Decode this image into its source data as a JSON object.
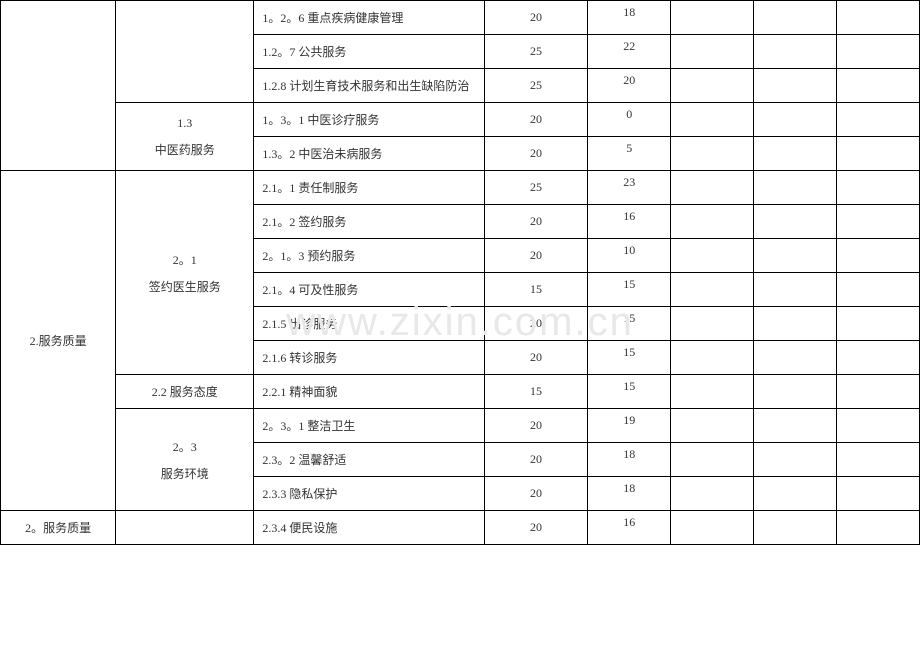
{
  "watermark": "www.zixin.com.cn",
  "table": {
    "border_color": "#000000",
    "background_color": "#ffffff",
    "font_size": 12,
    "text_color": "#333333",
    "rows": [
      {
        "col1": "",
        "col2": "",
        "col3": "1。2。6 重点疾病健康管理",
        "col4": "20",
        "col5": "18",
        "col1_rowspan": 5,
        "col2_rowspan": 3
      },
      {
        "col3": "1.2。7 公共服务",
        "col4": "25",
        "col5": "22"
      },
      {
        "col3": "1.2.8 计划生育技术服务和出生缺陷防治",
        "col4": "25",
        "col5": "20"
      },
      {
        "col2": "1.3",
        "col3": "1。3。1 中医诊疗服务",
        "col4": "20",
        "col5": "0",
        "col2_sub": "中医药服务",
        "col2_rowspan": 2
      },
      {
        "col3": "1.3。2 中医治未病服务",
        "col4": "20",
        "col5": "5"
      },
      {
        "col1": "2.服务质量",
        "col2": "2。1",
        "col2_sub": "签约医生服务",
        "col3": "2.1。1 责任制服务",
        "col4": "25",
        "col5": "23",
        "col1_rowspan": 10,
        "col2_rowspan": 6
      },
      {
        "col3": "2.1。2 签约服务",
        "col4": "20",
        "col5": "16"
      },
      {
        "col3": "2。1。3 预约服务",
        "col4": "20",
        "col5": "10"
      },
      {
        "col3": "2.1。4 可及性服务",
        "col4": "15",
        "col5": "15"
      },
      {
        "col3": "2.1.5 出诊服务",
        "col4": "20",
        "col5": "15"
      },
      {
        "col3": "2.1.6 转诊服务",
        "col4": "20",
        "col5": "15"
      },
      {
        "col2": "2.2 服务态度",
        "col3": "2.2.1 精神面貌",
        "col4": "15",
        "col5": "15",
        "col2_rowspan": 1
      },
      {
        "col2": "2。3",
        "col2_sub": "服务环境",
        "col3": "2。3。1 整洁卫生",
        "col4": "20",
        "col5": "19",
        "col2_rowspan": 3
      },
      {
        "col3": "2.3。2 温馨舒适",
        "col4": "20",
        "col5": "18"
      },
      {
        "col3": "2.3.3 隐私保护",
        "col4": "20",
        "col5": "18"
      },
      {
        "col1": "2。服务质量",
        "col2": "",
        "col3": "2.3.4 便民设施",
        "col4": "20",
        "col5": "16",
        "col1_rowspan": 1,
        "col2_rowspan": 1
      }
    ]
  }
}
